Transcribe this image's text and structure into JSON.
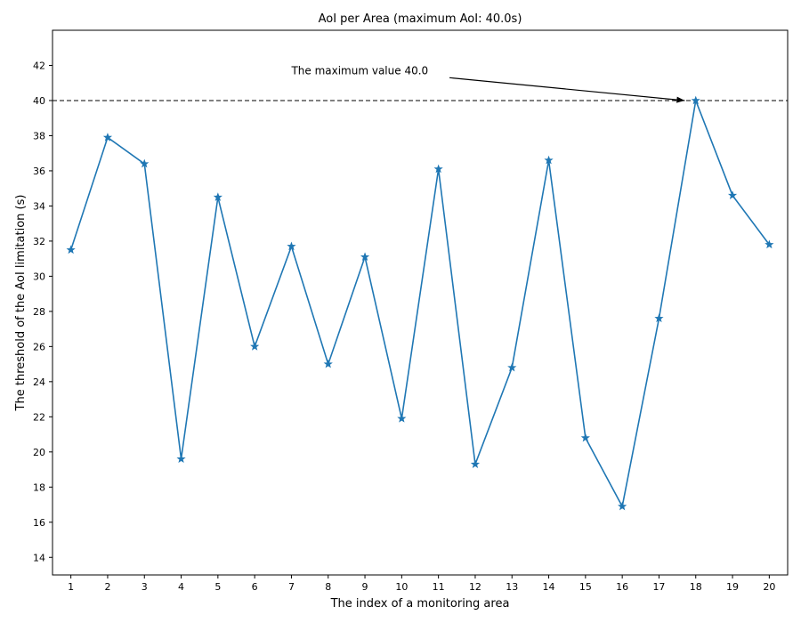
{
  "chart_data": {
    "type": "line",
    "title": "AoI per Area (maximum AoI: 40.0s)",
    "xlabel": "The index of a monitoring area",
    "ylabel": "The threshold of the AoI limitation (s)",
    "x": [
      1,
      2,
      3,
      4,
      5,
      6,
      7,
      8,
      9,
      10,
      11,
      12,
      13,
      14,
      15,
      16,
      17,
      18,
      19,
      20
    ],
    "series": [
      {
        "values": [
          31.5,
          37.9,
          36.4,
          19.6,
          34.5,
          26.0,
          31.7,
          25.0,
          31.1,
          21.9,
          36.1,
          19.3,
          24.8,
          36.6,
          20.8,
          16.9,
          27.6,
          40.0,
          34.6,
          31.8
        ],
        "color": "#1f77b4",
        "marker": "star"
      }
    ],
    "xlim": [
      0.5,
      20.5
    ],
    "ylim": [
      13,
      44
    ],
    "yticks": [
      14,
      16,
      18,
      20,
      22,
      24,
      26,
      28,
      30,
      32,
      34,
      36,
      38,
      40,
      42
    ],
    "xticks": [
      1,
      2,
      3,
      4,
      5,
      6,
      7,
      8,
      9,
      10,
      11,
      12,
      13,
      14,
      15,
      16,
      17,
      18,
      19,
      20
    ],
    "grid": false,
    "reference_line": {
      "y": 40.0,
      "style": "dashed",
      "color": "#000000"
    },
    "annotation": {
      "text": "The maximum value 40.0",
      "text_at": {
        "x": 7.0,
        "y": 41.7
      },
      "arrow_from": {
        "x": 11.3,
        "y": 41.3
      },
      "arrow_to": {
        "x": 17.7,
        "y": 40.0
      }
    }
  }
}
